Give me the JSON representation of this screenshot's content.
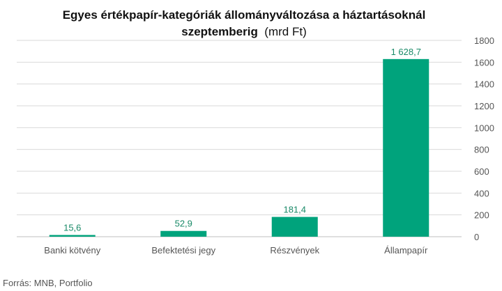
{
  "chart_data": {
    "type": "bar",
    "title_line1": "Egyes értékpapír-kategóriák állományváltozása a háztartásoknál",
    "title_line2": "szeptemberig",
    "unit": "(mrd Ft)",
    "categories": [
      "Banki kötvény",
      "Befektetési jegy",
      "Részvények",
      "Állampapír"
    ],
    "values": [
      15.6,
      52.9,
      181.4,
      1628.7
    ],
    "value_labels": [
      "15,6",
      "52,9",
      "181,4",
      "1 628,7"
    ],
    "ylim": [
      0,
      1800
    ],
    "yticks": [
      0,
      200,
      400,
      600,
      800,
      1000,
      1200,
      1400,
      1600,
      1800
    ],
    "ytick_labels": [
      "0",
      "200",
      "400",
      "600",
      "800",
      "1000",
      "1200",
      "1400",
      "1600",
      "1800"
    ],
    "y_axis_position": "right",
    "grid": true,
    "bar_color": "#00a37c",
    "label_color": "#1a8a68",
    "gridline_color": "#d9d9d9"
  },
  "source": "Forrás: MNB, Portfolio"
}
